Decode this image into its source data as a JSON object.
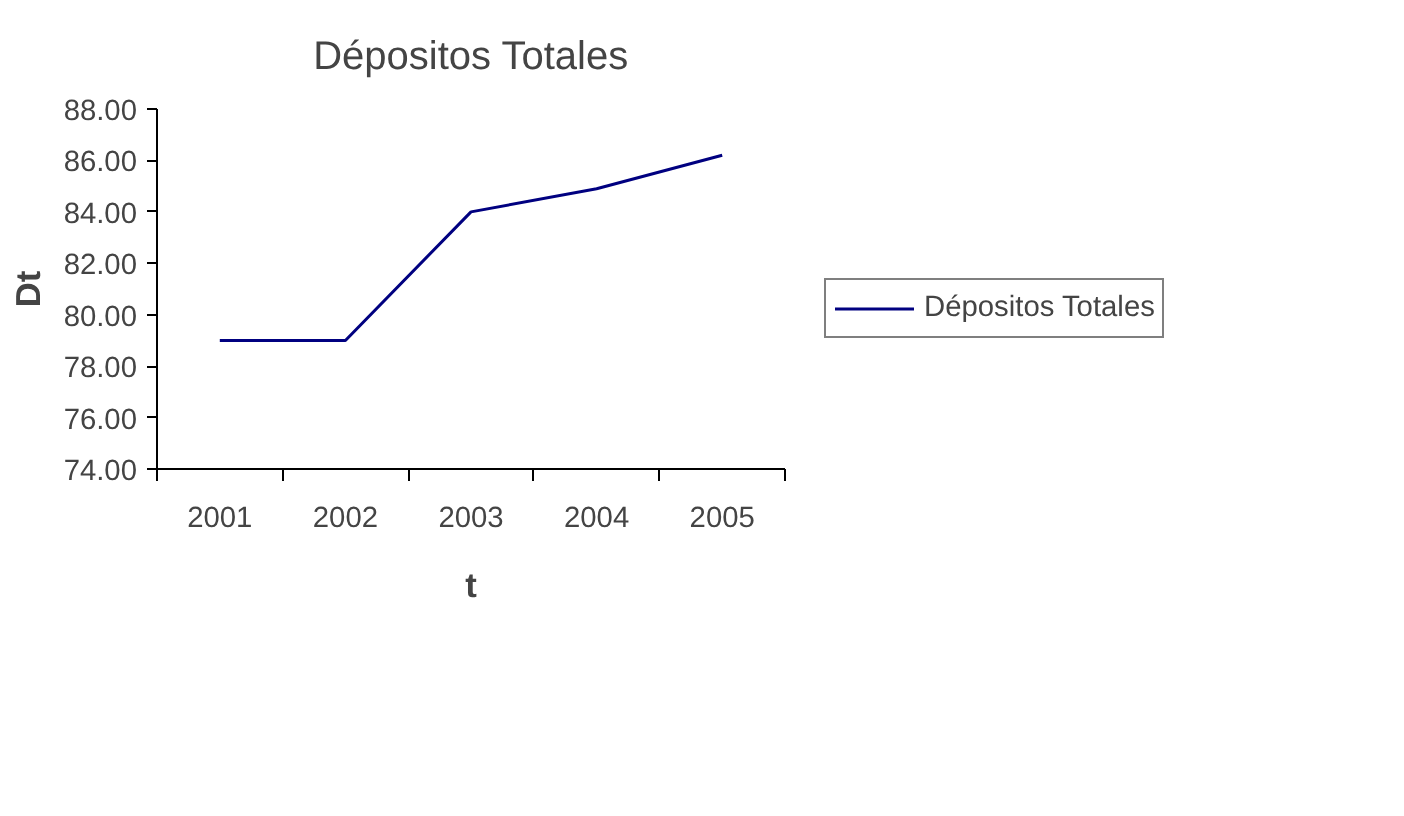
{
  "chart_data": {
    "type": "line",
    "title": "Dépositos Totales",
    "xlabel": "t",
    "ylabel": "Dt",
    "categories": [
      "2001",
      "2002",
      "2003",
      "2004",
      "2005"
    ],
    "series": [
      {
        "name": "Dépositos Totales",
        "color": "#000080",
        "values": [
          79.0,
          79.0,
          84.0,
          84.9,
          86.2
        ]
      }
    ],
    "ylim": [
      74,
      88
    ],
    "yticks": [
      {
        "value": 74,
        "label": "74.00"
      },
      {
        "value": 76,
        "label": "76.00"
      },
      {
        "value": 78,
        "label": "78.00"
      },
      {
        "value": 80,
        "label": "80.00"
      },
      {
        "value": 82,
        "label": "82.00"
      },
      {
        "value": 84,
        "label": "84.00"
      },
      {
        "value": 86,
        "label": "86.00"
      },
      {
        "value": 88,
        "label": "88.00"
      }
    ],
    "grid": false,
    "legend": "right",
    "marker": "none",
    "line_style": "solid"
  }
}
